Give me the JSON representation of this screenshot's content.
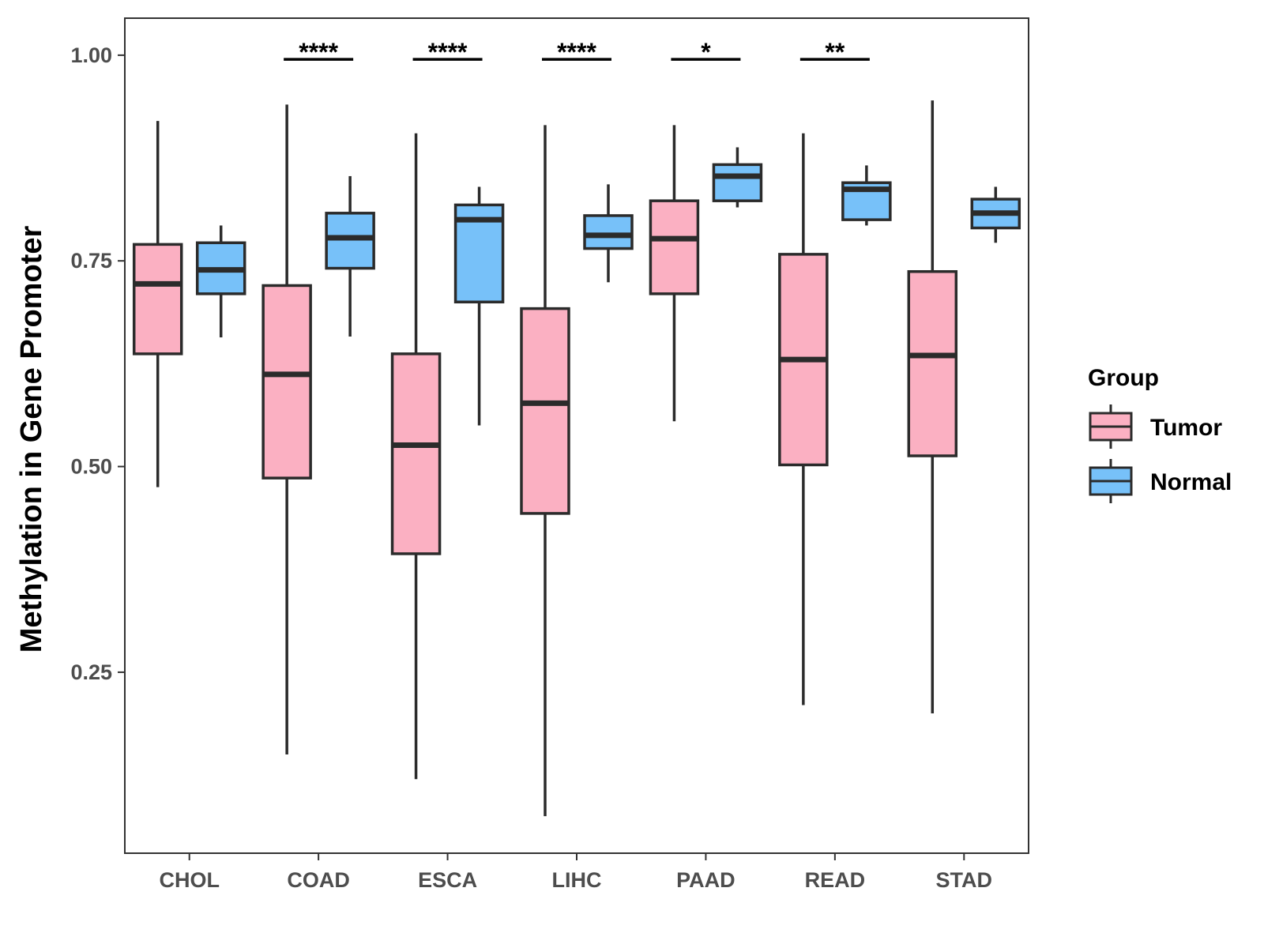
{
  "chart_data": {
    "type": "boxplot",
    "title": "",
    "xlabel": "",
    "ylabel": "Methylation in Gene Promoter",
    "ylim": [
      0.03,
      1.045
    ],
    "yticks": [
      "0.25",
      "0.50",
      "0.75",
      "1.00"
    ],
    "ytick_values": [
      0.25,
      0.5,
      0.75,
      1.0
    ],
    "grid": false,
    "categories": [
      "CHOL",
      "COAD",
      "ESCA",
      "LIHC",
      "PAAD",
      "READ",
      "STAD"
    ],
    "series": [
      {
        "name": "Tumor",
        "color": "#FBB0C2",
        "boxes": [
          {
            "min": 0.475,
            "q1": 0.637,
            "median": 0.722,
            "q3": 0.77,
            "max": 0.92
          },
          {
            "min": 0.15,
            "q1": 0.486,
            "median": 0.612,
            "q3": 0.72,
            "max": 0.94
          },
          {
            "min": 0.12,
            "q1": 0.394,
            "median": 0.526,
            "q3": 0.637,
            "max": 0.905
          },
          {
            "min": 0.075,
            "q1": 0.443,
            "median": 0.577,
            "q3": 0.692,
            "max": 0.915
          },
          {
            "min": 0.555,
            "q1": 0.71,
            "median": 0.777,
            "q3": 0.823,
            "max": 0.915
          },
          {
            "min": 0.21,
            "q1": 0.502,
            "median": 0.63,
            "q3": 0.758,
            "max": 0.905
          },
          {
            "min": 0.2,
            "q1": 0.513,
            "median": 0.635,
            "q3": 0.737,
            "max": 0.945
          }
        ]
      },
      {
        "name": "Normal",
        "color": "#77C1F9",
        "boxes": [
          {
            "min": 0.657,
            "q1": 0.71,
            "median": 0.739,
            "q3": 0.772,
            "max": 0.793
          },
          {
            "min": 0.658,
            "q1": 0.741,
            "median": 0.778,
            "q3": 0.808,
            "max": 0.853
          },
          {
            "min": 0.55,
            "q1": 0.7,
            "median": 0.8,
            "q3": 0.818,
            "max": 0.84
          },
          {
            "min": 0.724,
            "q1": 0.765,
            "median": 0.781,
            "q3": 0.805,
            "max": 0.843
          },
          {
            "min": 0.815,
            "q1": 0.823,
            "median": 0.853,
            "q3": 0.867,
            "max": 0.888
          },
          {
            "min": 0.793,
            "q1": 0.8,
            "median": 0.837,
            "q3": 0.845,
            "max": 0.866
          },
          {
            "min": 0.772,
            "q1": 0.79,
            "median": 0.808,
            "q3": 0.825,
            "max": 0.84
          }
        ]
      }
    ],
    "annotations": [
      {
        "category": "COAD",
        "label": "****",
        "y": 0.995
      },
      {
        "category": "ESCA",
        "label": "****",
        "y": 0.995
      },
      {
        "category": "LIHC",
        "label": "****",
        "y": 0.995
      },
      {
        "category": "PAAD",
        "label": "*",
        "y": 0.995
      },
      {
        "category": "READ",
        "label": "**",
        "y": 0.995
      }
    ],
    "legend": {
      "title": "Group",
      "position": "right",
      "items": [
        "Tumor",
        "Normal"
      ]
    }
  }
}
